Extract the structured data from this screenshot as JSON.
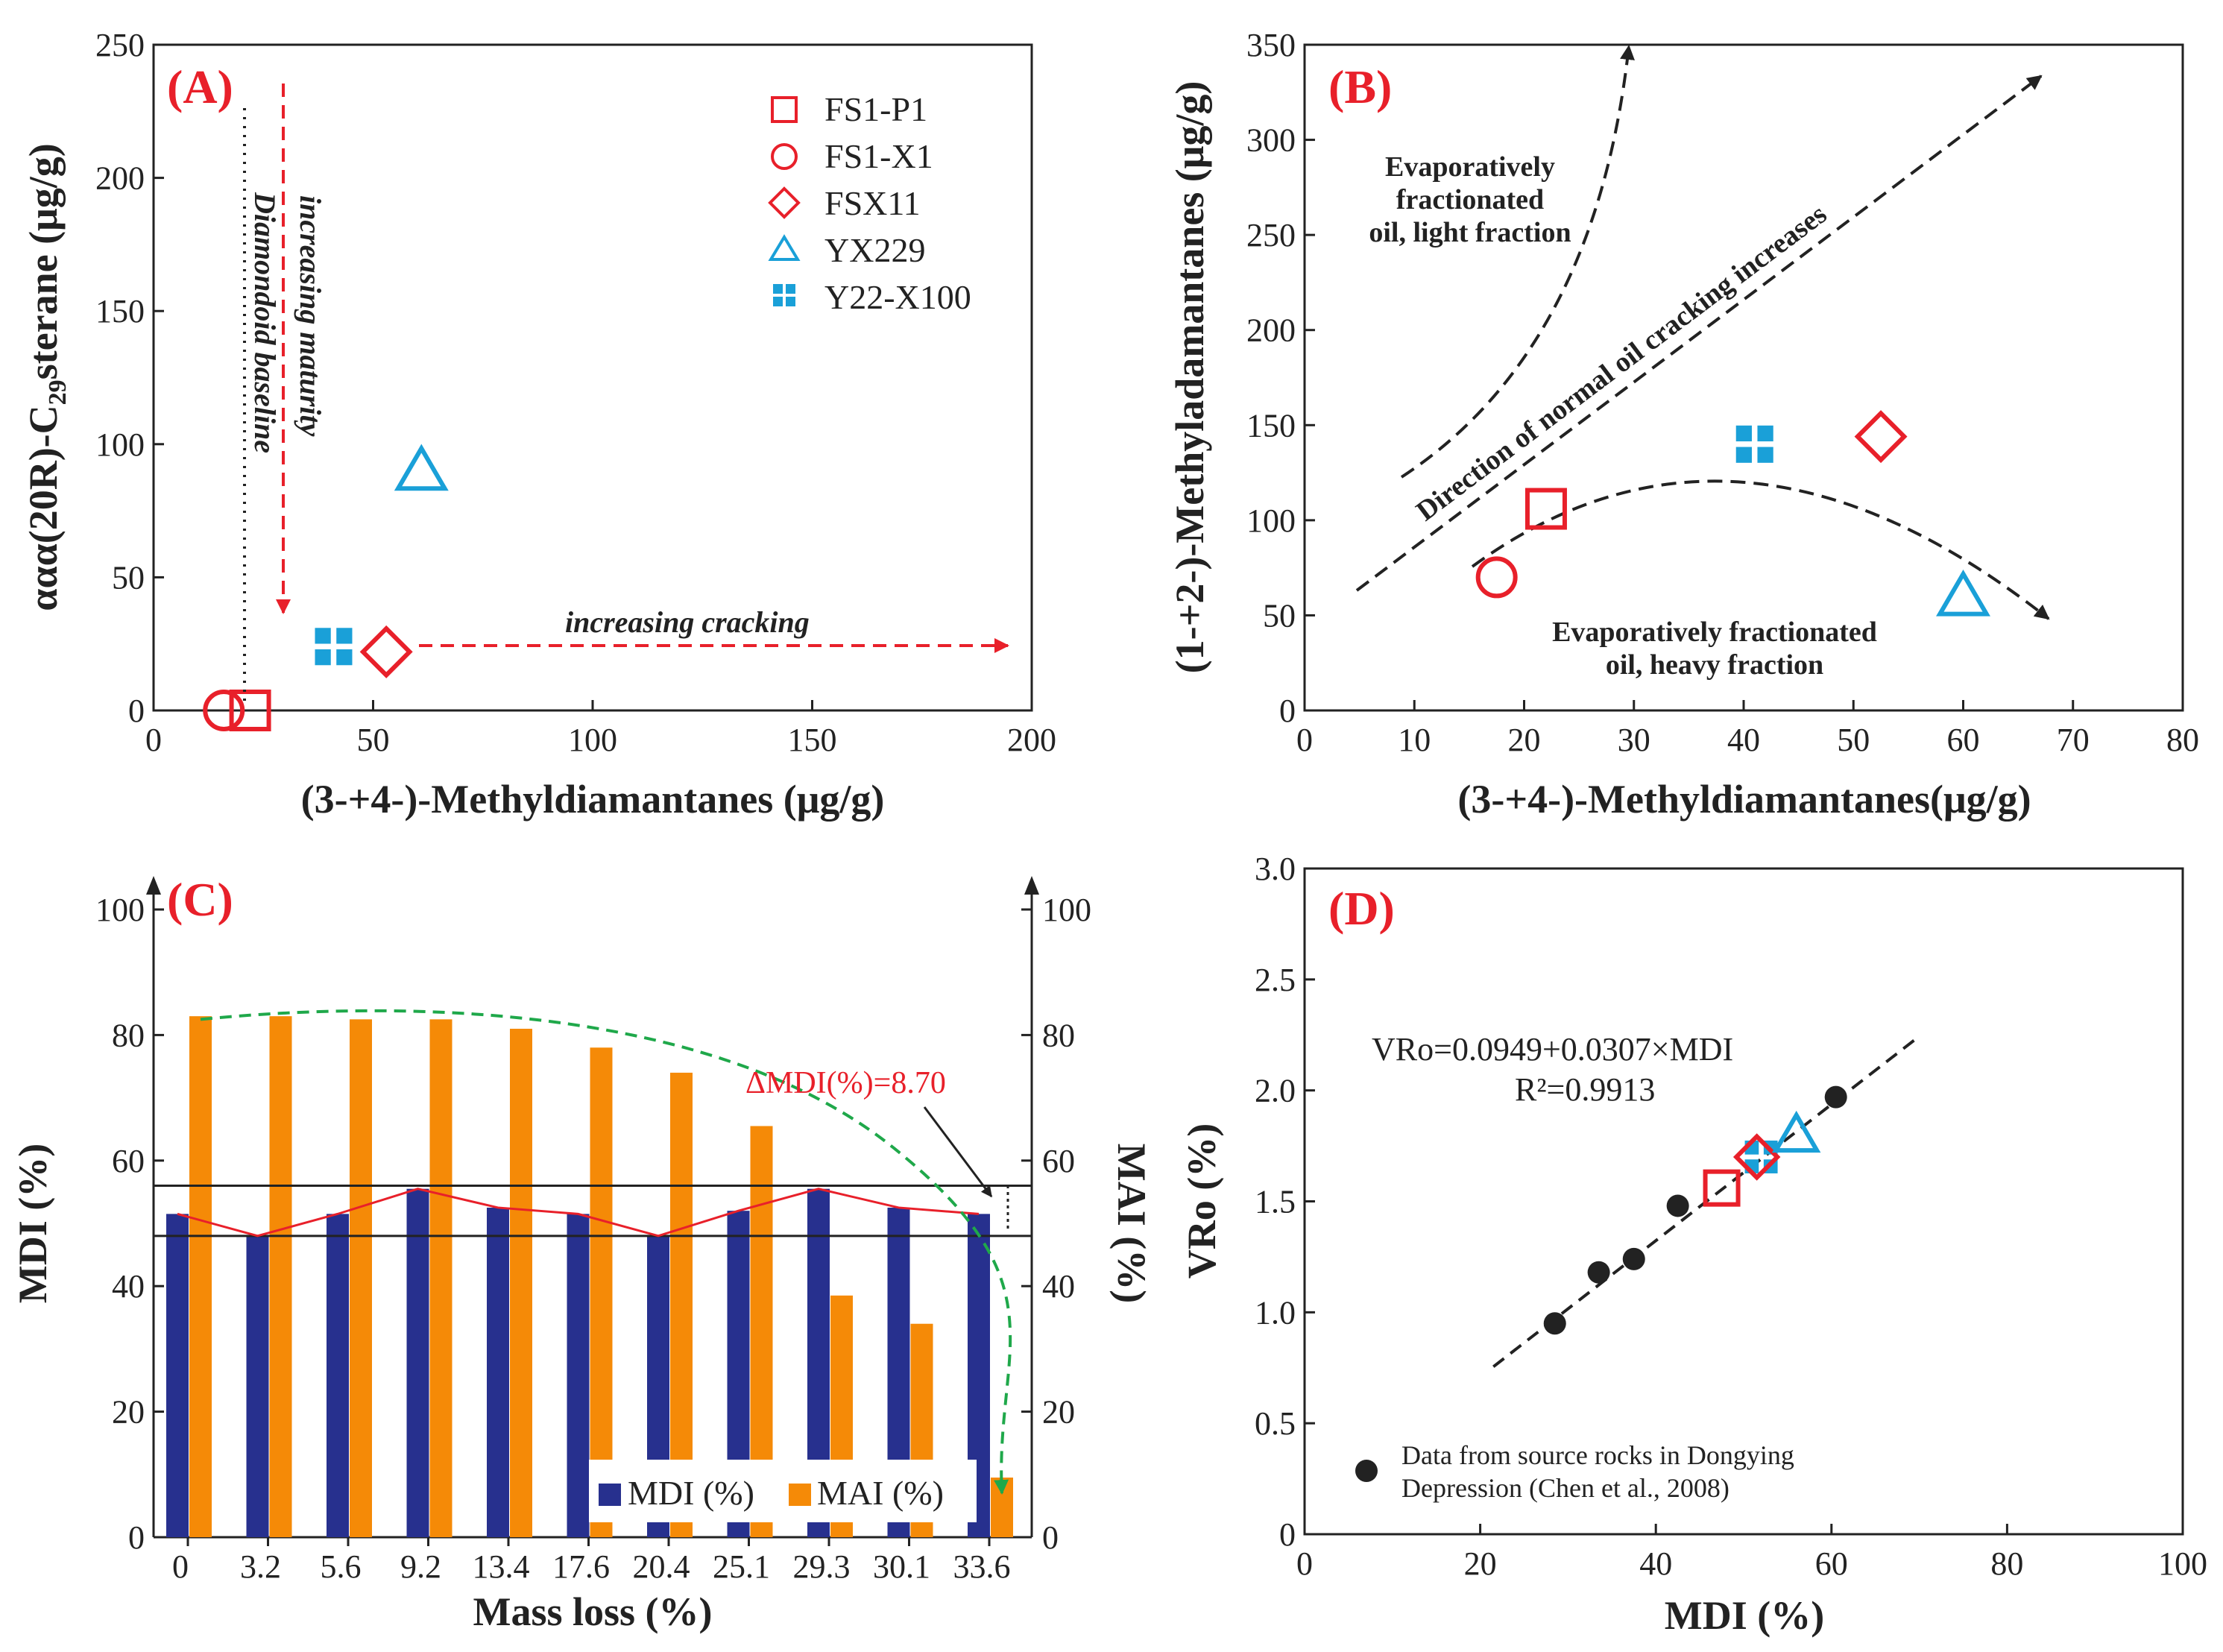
{
  "colors": {
    "red": "#e8202a",
    "blue": "#1aa0d8",
    "navy": "#27308e",
    "orange": "#f58a07",
    "green": "#1fa84a",
    "black": "#222222"
  },
  "legend_a": [
    "FS1-P1",
    "FS1-X1",
    "FSX11",
    "YX229",
    "Y22-X100"
  ],
  "legend_d": "Data from source rocks in  Dongying Depression (Chen et al., 2008)",
  "chart_data": [
    {
      "panel": "A",
      "label": "(A)",
      "type": "scatter",
      "xlabel": "(3-+4-)-Methyldiamantanes (μg/g)",
      "ylabel": "ααα(20R)-C29sterane (μg/g)",
      "xlim": [
        0,
        200
      ],
      "ylim": [
        0,
        250
      ],
      "xticks": [
        0,
        50,
        100,
        150,
        200
      ],
      "yticks": [
        0,
        50,
        100,
        150,
        200,
        250
      ],
      "series": [
        {
          "name": "FS1-P1",
          "marker": "square",
          "x": 22,
          "y": 0
        },
        {
          "name": "FS1-X1",
          "marker": "circle",
          "x": 16,
          "y": 0
        },
        {
          "name": "FSX11",
          "marker": "diamond",
          "x": 53,
          "y": 22
        },
        {
          "name": "YX229",
          "marker": "triangle",
          "x": 61,
          "y": 90
        },
        {
          "name": "Y22-X100",
          "marker": "cross-squares",
          "x": 41,
          "y": 24
        }
      ],
      "annotations": {
        "baseline": "Diamondoid baseline",
        "maturity": "increasing maturity",
        "cracking": "increasing cracking"
      },
      "baseline_x": 20
    },
    {
      "panel": "B",
      "label": "(B)",
      "type": "scatter",
      "xlabel": "(3-+4-)-Methyldiamantanes(μg/g)",
      "ylabel": "(1-+2-)-Methyladamantanes (μg/g)",
      "xlim": [
        0,
        80
      ],
      "ylim": [
        0,
        350
      ],
      "xticks": [
        0,
        10,
        20,
        30,
        40,
        50,
        60,
        70,
        80
      ],
      "yticks": [
        0,
        50,
        100,
        150,
        200,
        250,
        300,
        350
      ],
      "series": [
        {
          "name": "FS1-P1",
          "marker": "square",
          "x": 22,
          "y": 106
        },
        {
          "name": "FS1-X1",
          "marker": "circle",
          "x": 17.5,
          "y": 70
        },
        {
          "name": "FSX11",
          "marker": "diamond",
          "x": 52.5,
          "y": 144
        },
        {
          "name": "YX229",
          "marker": "triangle",
          "x": 60,
          "y": 60
        },
        {
          "name": "Y22-X100",
          "marker": "cross-squares",
          "x": 41,
          "y": 140
        }
      ],
      "annotations": {
        "light_1": "Evaporatively",
        "light_2": "fractionated",
        "light_3": "oil, light fraction",
        "normal": "Direction of normal oil cracking increases",
        "heavy_1": "Evaporatively fractionated",
        "heavy_2": "oil, heavy fraction"
      }
    },
    {
      "panel": "C",
      "label": "(C)",
      "type": "bar",
      "xlabel": "Mass loss (%)",
      "ylabel": "MDI (%)",
      "y2label": "MAI (%)",
      "ylim": [
        0,
        100
      ],
      "yticks": [
        0,
        20,
        40,
        60,
        80,
        100
      ],
      "categories": [
        "0",
        "3.2",
        "5.6",
        "9.2",
        "13.4",
        "17.6",
        "20.4",
        "25.1",
        "29.3",
        "30.1",
        "33.6"
      ],
      "series": [
        {
          "name": "MDI (%)",
          "values": [
            51.5,
            48,
            51.5,
            55.5,
            52.5,
            51.5,
            48,
            52,
            55.5,
            52.5,
            51.5
          ]
        },
        {
          "name": "MAI (%)",
          "values": [
            83,
            83,
            82.5,
            82.5,
            81,
            78,
            74,
            65.5,
            38.5,
            34,
            9.5
          ]
        }
      ],
      "reference_lines": [
        56,
        48
      ],
      "annotation": "ΔMDI(%)=8.70"
    },
    {
      "panel": "D",
      "label": "(D)",
      "type": "scatter",
      "xlabel": "MDI (%)",
      "ylabel": "VRo (%)",
      "xlim": [
        0,
        100
      ],
      "ylim": [
        0,
        3.0
      ],
      "xticks": [
        0,
        20,
        40,
        60,
        80,
        100
      ],
      "yticks": [
        "0",
        "0.5",
        "1.0",
        "1.5",
        "2.0",
        "2.5",
        "3.0"
      ],
      "source_rocks": [
        [
          28.5,
          0.95
        ],
        [
          33.5,
          1.18
        ],
        [
          37.5,
          1.24
        ],
        [
          42.5,
          1.48
        ],
        [
          60.5,
          1.97
        ]
      ],
      "samples": [
        {
          "name": "FS1-P1",
          "marker": "square",
          "x": 47.5,
          "y": 1.56
        },
        {
          "name": "Y22-X100",
          "marker": "cross-squares",
          "x": 52,
          "y": 1.7
        },
        {
          "name": "FSX11",
          "marker": "diamond",
          "x": 51.5,
          "y": 1.7
        },
        {
          "name": "YX229",
          "marker": "triangle",
          "x": 56,
          "y": 1.8
        }
      ],
      "fit": {
        "intercept": 0.0949,
        "slope": 0.0307,
        "x_range": [
          21.5,
          69.5
        ]
      },
      "equation": "VRo=0.0949+0.0307×MDI",
      "r2": "R²=0.9913"
    }
  ]
}
